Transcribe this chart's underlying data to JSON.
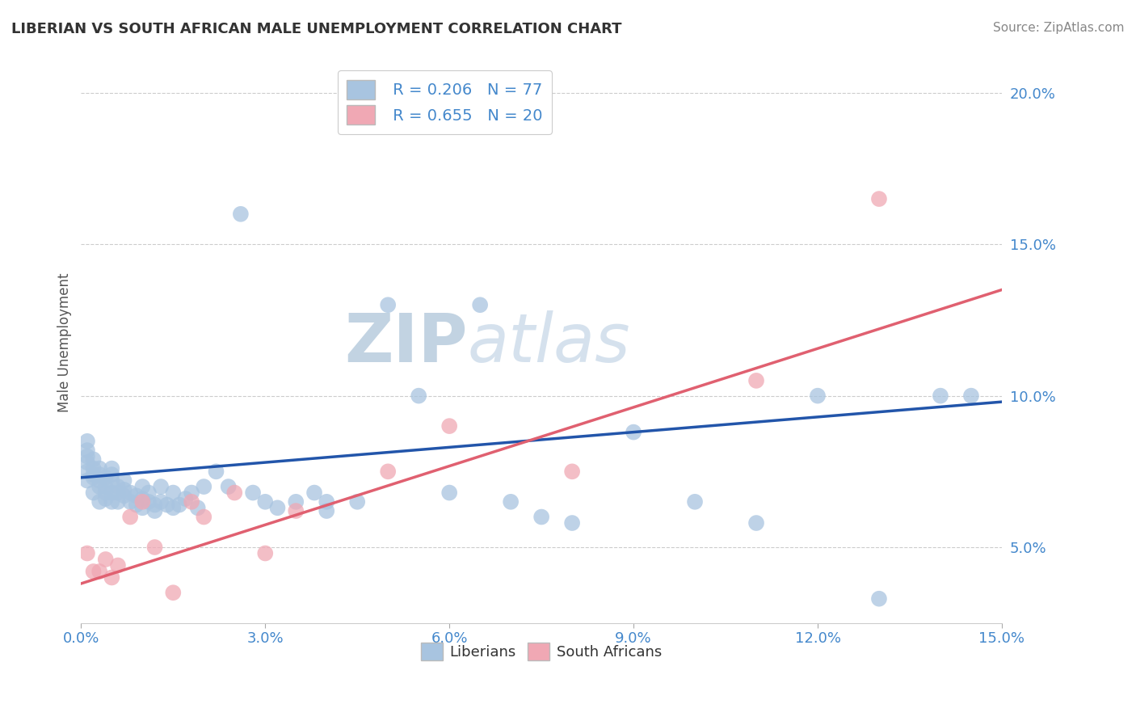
{
  "title": "LIBERIAN VS SOUTH AFRICAN MALE UNEMPLOYMENT CORRELATION CHART",
  "source": "Source: ZipAtlas.com",
  "ylabel": "Male Unemployment",
  "xlim": [
    0.0,
    0.15
  ],
  "ylim": [
    0.025,
    0.21
  ],
  "x_ticks": [
    0.0,
    0.03,
    0.06,
    0.09,
    0.12,
    0.15
  ],
  "y_ticks": [
    0.05,
    0.1,
    0.15,
    0.2
  ],
  "x_tick_labels": [
    "0.0%",
    "3.0%",
    "6.0%",
    "9.0%",
    "12.0%",
    "15.0%"
  ],
  "y_tick_labels": [
    "5.0%",
    "10.0%",
    "15.0%",
    "20.0%"
  ],
  "liberian_R": 0.206,
  "liberian_N": 77,
  "southafrican_R": 0.655,
  "southafrican_N": 20,
  "liberian_color": "#a8c4e0",
  "liberian_line_color": "#2255aa",
  "southafrican_color": "#f0a8b4",
  "southafrican_line_color": "#e06070",
  "liberian_x": [
    0.001,
    0.001,
    0.001,
    0.001,
    0.001,
    0.001,
    0.002,
    0.002,
    0.002,
    0.002,
    0.002,
    0.003,
    0.003,
    0.003,
    0.003,
    0.003,
    0.004,
    0.004,
    0.004,
    0.004,
    0.005,
    0.005,
    0.005,
    0.005,
    0.005,
    0.006,
    0.006,
    0.006,
    0.007,
    0.007,
    0.007,
    0.008,
    0.008,
    0.009,
    0.009,
    0.01,
    0.01,
    0.01,
    0.011,
    0.011,
    0.012,
    0.012,
    0.013,
    0.013,
    0.014,
    0.015,
    0.015,
    0.016,
    0.017,
    0.018,
    0.019,
    0.02,
    0.022,
    0.024,
    0.026,
    0.028,
    0.03,
    0.032,
    0.035,
    0.038,
    0.04,
    0.04,
    0.045,
    0.05,
    0.055,
    0.06,
    0.065,
    0.07,
    0.075,
    0.08,
    0.09,
    0.1,
    0.11,
    0.12,
    0.13,
    0.14,
    0.145
  ],
  "liberian_y": [
    0.075,
    0.078,
    0.08,
    0.082,
    0.085,
    0.072,
    0.073,
    0.076,
    0.079,
    0.068,
    0.074,
    0.07,
    0.072,
    0.074,
    0.076,
    0.065,
    0.068,
    0.07,
    0.073,
    0.066,
    0.068,
    0.072,
    0.074,
    0.076,
    0.065,
    0.068,
    0.07,
    0.065,
    0.067,
    0.069,
    0.072,
    0.065,
    0.068,
    0.064,
    0.067,
    0.063,
    0.066,
    0.07,
    0.065,
    0.068,
    0.062,
    0.064,
    0.065,
    0.07,
    0.064,
    0.063,
    0.068,
    0.064,
    0.066,
    0.068,
    0.063,
    0.07,
    0.075,
    0.07,
    0.16,
    0.068,
    0.065,
    0.063,
    0.065,
    0.068,
    0.062,
    0.065,
    0.065,
    0.13,
    0.1,
    0.068,
    0.13,
    0.065,
    0.06,
    0.058,
    0.088,
    0.065,
    0.058,
    0.1,
    0.033,
    0.1,
    0.1
  ],
  "southafrican_x": [
    0.001,
    0.002,
    0.003,
    0.004,
    0.005,
    0.006,
    0.008,
    0.01,
    0.012,
    0.015,
    0.018,
    0.02,
    0.025,
    0.03,
    0.035,
    0.05,
    0.06,
    0.08,
    0.11,
    0.13
  ],
  "southafrican_y": [
    0.048,
    0.042,
    0.042,
    0.046,
    0.04,
    0.044,
    0.06,
    0.065,
    0.05,
    0.035,
    0.065,
    0.06,
    0.068,
    0.048,
    0.062,
    0.075,
    0.09,
    0.075,
    0.105,
    0.165
  ],
  "blue_line_start_y": 0.073,
  "blue_line_end_y": 0.098,
  "pink_line_start_y": 0.038,
  "pink_line_end_y": 0.135,
  "watermark": "ZIPatlas",
  "watermark_color": "#d0dde8",
  "background_color": "#ffffff",
  "title_color": "#333333",
  "axis_color": "#4488cc",
  "grid_color": "#cccccc",
  "title_fontsize": 13,
  "source_fontsize": 11,
  "tick_fontsize": 13,
  "legend_fontsize": 14
}
